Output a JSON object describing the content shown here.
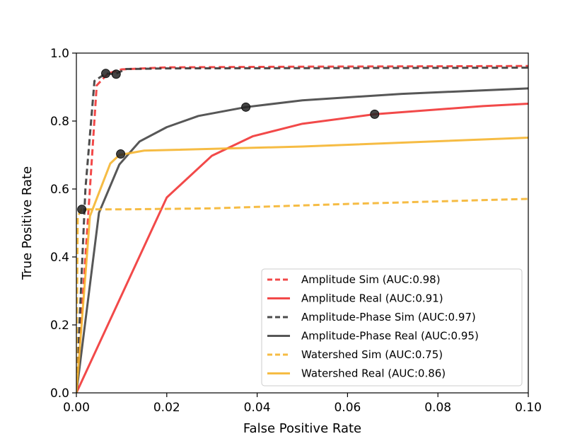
{
  "chart_data": {
    "type": "line",
    "title": "",
    "xlabel": "False Positive Rate",
    "ylabel": "True Positive Rate",
    "xlim": [
      0.0,
      0.1
    ],
    "ylim": [
      0.0,
      1.0
    ],
    "grid": false,
    "legend_position": "bottom-right",
    "xticks": [
      {
        "value": 0.0,
        "label": "0.00"
      },
      {
        "value": 0.02,
        "label": "0.02"
      },
      {
        "value": 0.04,
        "label": "0.04"
      },
      {
        "value": 0.06,
        "label": "0.06"
      },
      {
        "value": 0.08,
        "label": "0.08"
      },
      {
        "value": 0.1,
        "label": "0.10"
      }
    ],
    "yticks": [
      {
        "value": 0.0,
        "label": "0.0"
      },
      {
        "value": 0.2,
        "label": "0.2"
      },
      {
        "value": 0.4,
        "label": "0.4"
      },
      {
        "value": 0.6,
        "label": "0.6"
      },
      {
        "value": 0.8,
        "label": "0.8"
      },
      {
        "value": 1.0,
        "label": "1.0"
      }
    ],
    "series": [
      {
        "name": "Amplitude Sim (AUC:0.98)",
        "color": "#f03030",
        "style": "dashed",
        "points": [
          [
            0.0,
            0.0
          ],
          [
            0.0025,
            0.5
          ],
          [
            0.0045,
            0.905
          ],
          [
            0.007,
            0.94
          ],
          [
            0.01,
            0.952
          ],
          [
            0.02,
            0.958
          ],
          [
            0.05,
            0.96
          ],
          [
            0.1,
            0.962
          ]
        ]
      },
      {
        "name": "Amplitude Real (AUC:0.91)",
        "color": "#f03030",
        "style": "solid",
        "points": [
          [
            0.0,
            0.0
          ],
          [
            0.02,
            0.575
          ],
          [
            0.03,
            0.698
          ],
          [
            0.039,
            0.755
          ],
          [
            0.05,
            0.792
          ],
          [
            0.066,
            0.82
          ],
          [
            0.09,
            0.844
          ],
          [
            0.1,
            0.851
          ]
        ]
      },
      {
        "name": "Amplitude-Phase Sim (AUC:0.97)",
        "color": "#333333",
        "style": "dashed",
        "points": [
          [
            0.0,
            0.0
          ],
          [
            0.002,
            0.6
          ],
          [
            0.004,
            0.918
          ],
          [
            0.0065,
            0.94
          ],
          [
            0.0085,
            0.938
          ],
          [
            0.011,
            0.953
          ],
          [
            0.02,
            0.955
          ],
          [
            0.1,
            0.957
          ]
        ]
      },
      {
        "name": "Amplitude-Phase Real (AUC:0.95)",
        "color": "#404040",
        "style": "solid",
        "points": [
          [
            0.0,
            0.0
          ],
          [
            0.005,
            0.53
          ],
          [
            0.0095,
            0.672
          ],
          [
            0.014,
            0.74
          ],
          [
            0.02,
            0.782
          ],
          [
            0.027,
            0.815
          ],
          [
            0.0375,
            0.841
          ],
          [
            0.05,
            0.861
          ],
          [
            0.072,
            0.88
          ],
          [
            0.1,
            0.896
          ]
        ]
      },
      {
        "name": "Watershed Sim (AUC:0.75)",
        "color": "#f5b32a",
        "style": "dashed",
        "points": [
          [
            0.0,
            0.0
          ],
          [
            0.0003,
            0.52
          ],
          [
            0.0012,
            0.54
          ],
          [
            0.01,
            0.54
          ],
          [
            0.03,
            0.543
          ],
          [
            0.06,
            0.556
          ],
          [
            0.1,
            0.571
          ]
        ]
      },
      {
        "name": "Watershed Real (AUC:0.86)",
        "color": "#f5b32a",
        "style": "solid",
        "points": [
          [
            0.0,
            0.0
          ],
          [
            0.003,
            0.52
          ],
          [
            0.0075,
            0.675
          ],
          [
            0.0095,
            0.7
          ],
          [
            0.015,
            0.713
          ],
          [
            0.05,
            0.725
          ],
          [
            0.1,
            0.751
          ]
        ]
      }
    ],
    "markers": [
      {
        "x": 0.0012,
        "y": 0.54
      },
      {
        "x": 0.0065,
        "y": 0.94
      },
      {
        "x": 0.0088,
        "y": 0.938
      },
      {
        "x": 0.0098,
        "y": 0.703
      },
      {
        "x": 0.0375,
        "y": 0.841
      },
      {
        "x": 0.066,
        "y": 0.82
      }
    ]
  }
}
